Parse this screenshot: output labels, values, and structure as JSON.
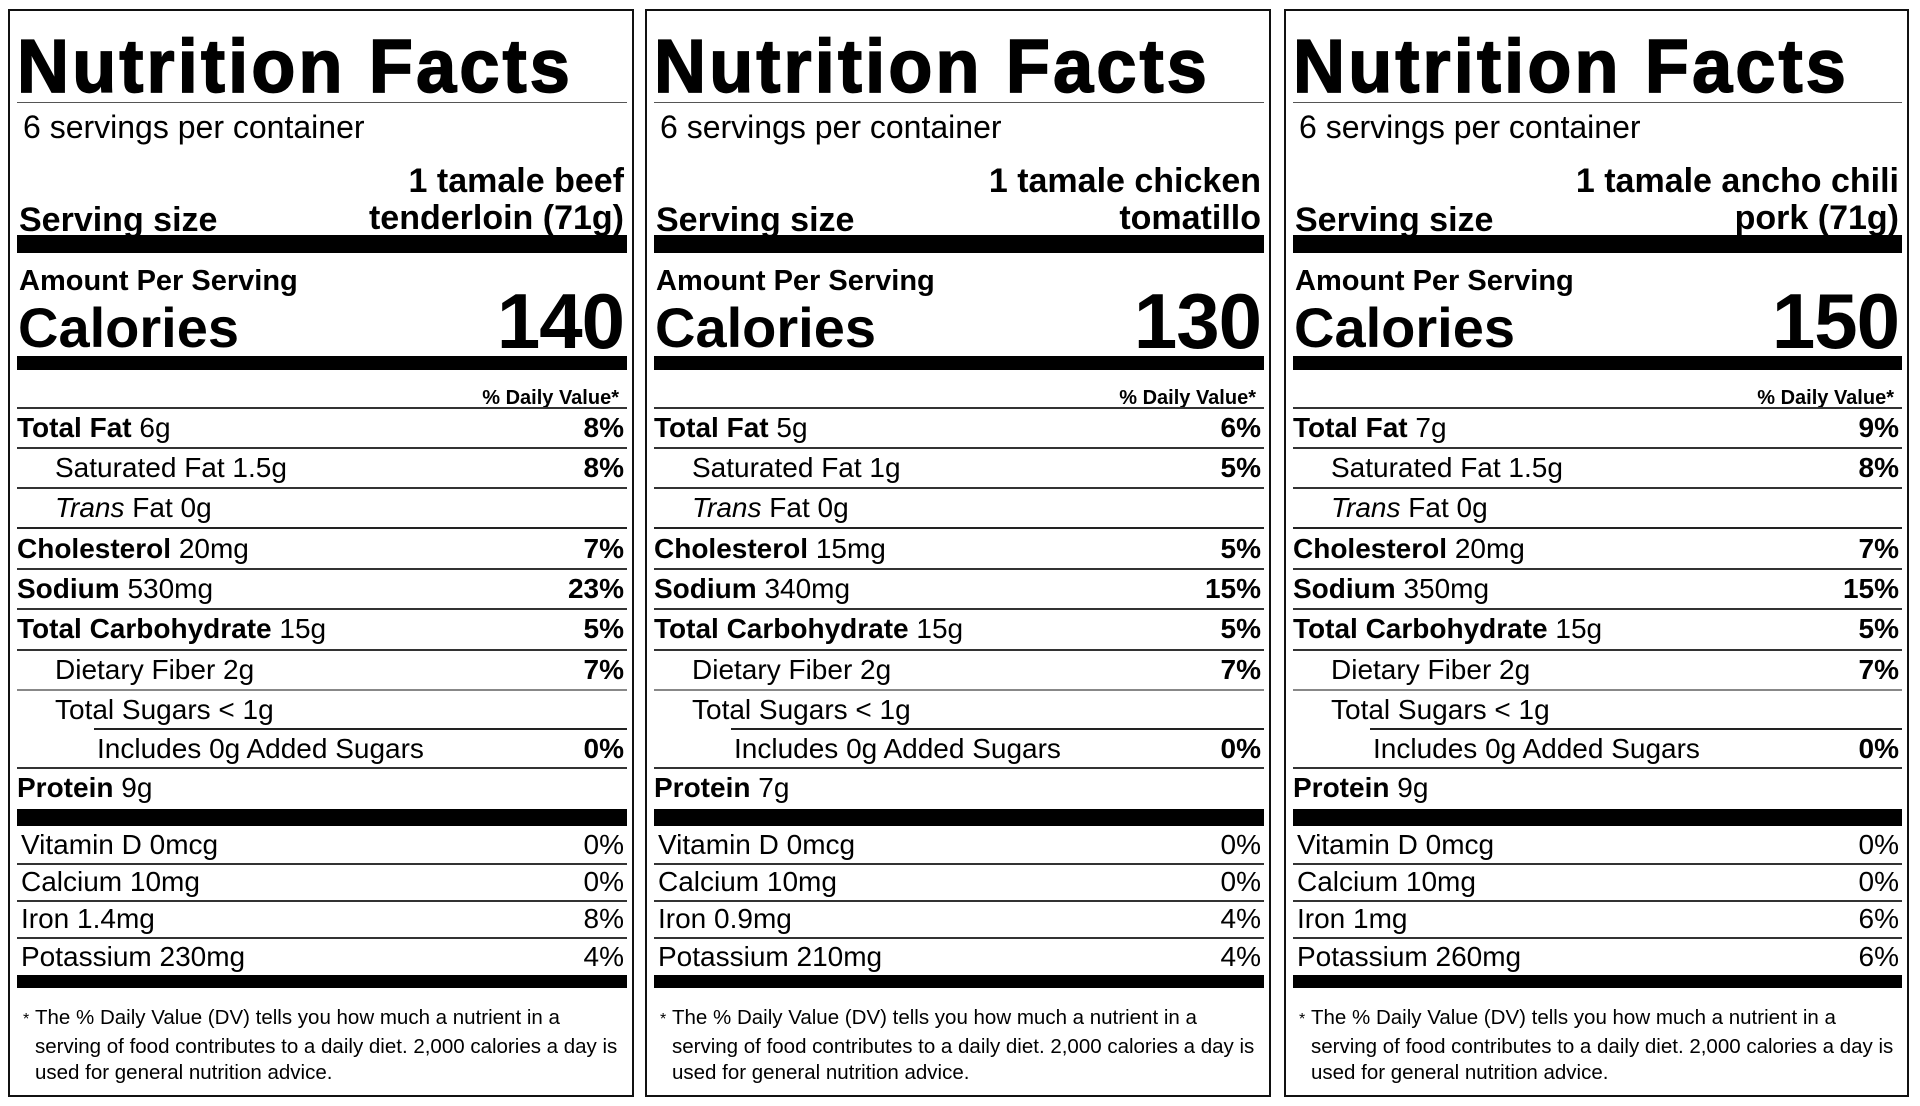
{
  "labels": [
    {
      "title": "Nutrition Facts",
      "servings_per_container": "6 servings per container",
      "serving_size_label": "Serving size",
      "serving_size_value": "1 tamale beef\ntenderloin (71g)",
      "amount_per_serving": "Amount Per Serving",
      "calories_label": "Calories",
      "calories": "140",
      "daily_value_header": "% Daily Value*",
      "nutrients": {
        "total_fat": {
          "name": "Total Fat",
          "amount": "6g",
          "dv": "8%"
        },
        "saturated_fat": {
          "name": "Saturated Fat 1.5g",
          "dv": "8%"
        },
        "trans_fat": {
          "italic": "Trans",
          "name": " Fat 0g"
        },
        "cholesterol": {
          "name": "Cholesterol",
          "amount": "20mg",
          "dv": "7%"
        },
        "sodium": {
          "name": "Sodium",
          "amount": "530mg",
          "dv": "23%"
        },
        "total_carbohydrate": {
          "name": "Total Carbohydrate",
          "amount": "15g",
          "dv": "5%"
        },
        "dietary_fiber": {
          "name": "Dietary Fiber 2g",
          "dv": "7%"
        },
        "total_sugars": {
          "name": "Total Sugars < 1g"
        },
        "added_sugars": {
          "name": "Includes 0g Added Sugars",
          "dv": "0%"
        },
        "protein": {
          "name": "Protein",
          "amount": "9g"
        }
      },
      "vitamins": [
        {
          "name": "Vitamin D 0mcg",
          "dv": "0%"
        },
        {
          "name": "Calcium 10mg",
          "dv": "0%"
        },
        {
          "name": "Iron 1.4mg",
          "dv": "8%"
        },
        {
          "name": "Potassium 230mg",
          "dv": "4%"
        }
      ],
      "footnote_star": "*",
      "footnote": "The % Daily Value (DV) tells you how much a nutrient in a serving of food contributes to a daily diet. 2,000 calories a day is used for general nutrition advice."
    },
    {
      "title": "Nutrition Facts",
      "servings_per_container": "6 servings per container",
      "serving_size_label": "Serving size",
      "serving_size_value": "1 tamale chicken\ntomatillo",
      "amount_per_serving": "Amount Per Serving",
      "calories_label": "Calories",
      "calories": "130",
      "daily_value_header": "% Daily Value*",
      "nutrients": {
        "total_fat": {
          "name": "Total Fat",
          "amount": "5g",
          "dv": "6%"
        },
        "saturated_fat": {
          "name": "Saturated Fat 1g",
          "dv": "5%"
        },
        "trans_fat": {
          "italic": "Trans",
          "name": " Fat 0g"
        },
        "cholesterol": {
          "name": "Cholesterol",
          "amount": "15mg",
          "dv": "5%"
        },
        "sodium": {
          "name": "Sodium",
          "amount": "340mg",
          "dv": "15%"
        },
        "total_carbohydrate": {
          "name": "Total Carbohydrate",
          "amount": "15g",
          "dv": "5%"
        },
        "dietary_fiber": {
          "name": "Dietary Fiber 2g",
          "dv": "7%"
        },
        "total_sugars": {
          "name": "Total Sugars < 1g"
        },
        "added_sugars": {
          "name": "Includes 0g Added Sugars",
          "dv": "0%"
        },
        "protein": {
          "name": "Protein",
          "amount": "7g"
        }
      },
      "vitamins": [
        {
          "name": "Vitamin D 0mcg",
          "dv": "0%"
        },
        {
          "name": "Calcium 10mg",
          "dv": "0%"
        },
        {
          "name": "Iron 0.9mg",
          "dv": "4%"
        },
        {
          "name": "Potassium 210mg",
          "dv": "4%"
        }
      ],
      "footnote_star": "*",
      "footnote": "The % Daily Value (DV) tells you how much a nutrient in a serving of food contributes to a daily diet. 2,000 calories a day is used for general nutrition advice."
    },
    {
      "title": "Nutrition Facts",
      "servings_per_container": "6 servings per container",
      "serving_size_label": "Serving size",
      "serving_size_value": "1 tamale ancho chili\npork (71g)",
      "amount_per_serving": "Amount Per Serving",
      "calories_label": "Calories",
      "calories": "150",
      "daily_value_header": "% Daily Value*",
      "nutrients": {
        "total_fat": {
          "name": "Total Fat",
          "amount": "7g",
          "dv": "9%"
        },
        "saturated_fat": {
          "name": "Saturated Fat 1.5g",
          "dv": "8%"
        },
        "trans_fat": {
          "italic": "Trans",
          "name": " Fat 0g"
        },
        "cholesterol": {
          "name": "Cholesterol",
          "amount": "20mg",
          "dv": "7%"
        },
        "sodium": {
          "name": "Sodium",
          "amount": "350mg",
          "dv": "15%"
        },
        "total_carbohydrate": {
          "name": "Total Carbohydrate",
          "amount": "15g",
          "dv": "5%"
        },
        "dietary_fiber": {
          "name": "Dietary Fiber 2g",
          "dv": "7%"
        },
        "total_sugars": {
          "name": "Total Sugars < 1g"
        },
        "added_sugars": {
          "name": "Includes 0g Added Sugars",
          "dv": "0%"
        },
        "protein": {
          "name": "Protein",
          "amount": "9g"
        }
      },
      "vitamins": [
        {
          "name": "Vitamin D 0mcg",
          "dv": "0%"
        },
        {
          "name": "Calcium 10mg",
          "dv": "0%"
        },
        {
          "name": "Iron 1mg",
          "dv": "6%"
        },
        {
          "name": "Potassium 260mg",
          "dv": "6%"
        }
      ],
      "footnote_star": "*",
      "footnote": "The % Daily Value (DV) tells you how much a nutrient in a serving of food contributes to a daily diet. 2,000 calories a day is used for general nutrition advice."
    }
  ]
}
